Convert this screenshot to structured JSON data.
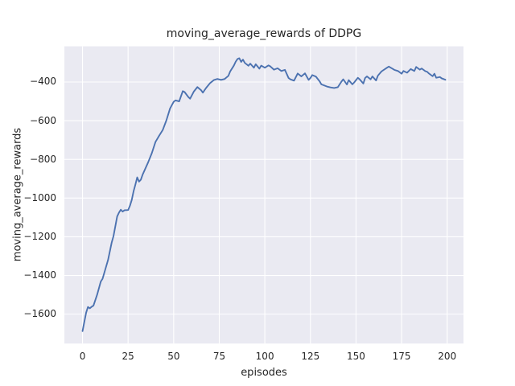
{
  "chart_data": {
    "type": "line",
    "title": "moving_average_rewards of DDPG",
    "xlabel": "episodes",
    "ylabel": "moving_average_rewards",
    "legend": null,
    "grid": true,
    "background_color": "#EAEAF2",
    "grid_color": "#FFFFFF",
    "line_color": "#4C72B0",
    "text_color": "#262626",
    "xlim": [
      -9.95,
      208.95
    ],
    "ylim": [
      -1752.1,
      -215.4
    ],
    "xticks": {
      "values": [
        0,
        25,
        50,
        75,
        100,
        125,
        150,
        175,
        200
      ],
      "labels": [
        "0",
        "25",
        "50",
        "75",
        "100",
        "125",
        "150",
        "175",
        "200"
      ]
    },
    "yticks": {
      "values": [
        -400,
        -600,
        -800,
        -1000,
        -1200,
        -1400,
        -1600
      ],
      "labels": [
        "−400",
        "−600",
        "−800",
        "−1000",
        "−1200",
        "−1400",
        "−1600"
      ]
    },
    "x": [
      0,
      1,
      2,
      3,
      4,
      5,
      6,
      8,
      10,
      11,
      14,
      16,
      17,
      19,
      20,
      21,
      22,
      23,
      25,
      26,
      27,
      28,
      29,
      30,
      31,
      32,
      33,
      36,
      38,
      40,
      42,
      44,
      46,
      48,
      50,
      51,
      53,
      55,
      56,
      58,
      59,
      61,
      63,
      65,
      66,
      67,
      68,
      70,
      72,
      74,
      76,
      78,
      80,
      81,
      83,
      84,
      85,
      86,
      87,
      88,
      89,
      91,
      92,
      94,
      95,
      97,
      98,
      100,
      102,
      103,
      105,
      107,
      109,
      111,
      113,
      114,
      116,
      118,
      120,
      122,
      124,
      125,
      126,
      128,
      130,
      131,
      134,
      136,
      138,
      140,
      142,
      143,
      145,
      146,
      148,
      149,
      151,
      152,
      154,
      155,
      156,
      158,
      159,
      161,
      162,
      164,
      167,
      168,
      170,
      171,
      173,
      175,
      176,
      178,
      180,
      182,
      183,
      185,
      186,
      188,
      189,
      190,
      192,
      193,
      194,
      196,
      197,
      199
    ],
    "y": [
      -1688,
      -1640,
      -1592,
      -1563,
      -1570,
      -1562,
      -1556,
      -1500,
      -1432,
      -1417,
      -1320,
      -1230,
      -1196,
      -1095,
      -1075,
      -1060,
      -1070,
      -1063,
      -1062,
      -1040,
      -1010,
      -965,
      -930,
      -893,
      -915,
      -905,
      -878,
      -815,
      -768,
      -710,
      -678,
      -648,
      -598,
      -537,
      -502,
      -495,
      -500,
      -447,
      -452,
      -477,
      -486,
      -450,
      -426,
      -442,
      -455,
      -441,
      -428,
      -405,
      -390,
      -384,
      -389,
      -384,
      -368,
      -345,
      -315,
      -295,
      -281,
      -277,
      -296,
      -284,
      -301,
      -316,
      -305,
      -326,
      -308,
      -331,
      -315,
      -326,
      -314,
      -319,
      -336,
      -329,
      -343,
      -337,
      -379,
      -386,
      -393,
      -356,
      -371,
      -355,
      -389,
      -379,
      -364,
      -372,
      -396,
      -412,
      -423,
      -428,
      -431,
      -427,
      -398,
      -386,
      -413,
      -390,
      -412,
      -402,
      -378,
      -386,
      -408,
      -379,
      -371,
      -386,
      -371,
      -392,
      -367,
      -345,
      -326,
      -320,
      -331,
      -337,
      -343,
      -357,
      -343,
      -352,
      -333,
      -343,
      -322,
      -336,
      -330,
      -344,
      -347,
      -356,
      -370,
      -357,
      -378,
      -374,
      -381,
      -388
    ]
  }
}
